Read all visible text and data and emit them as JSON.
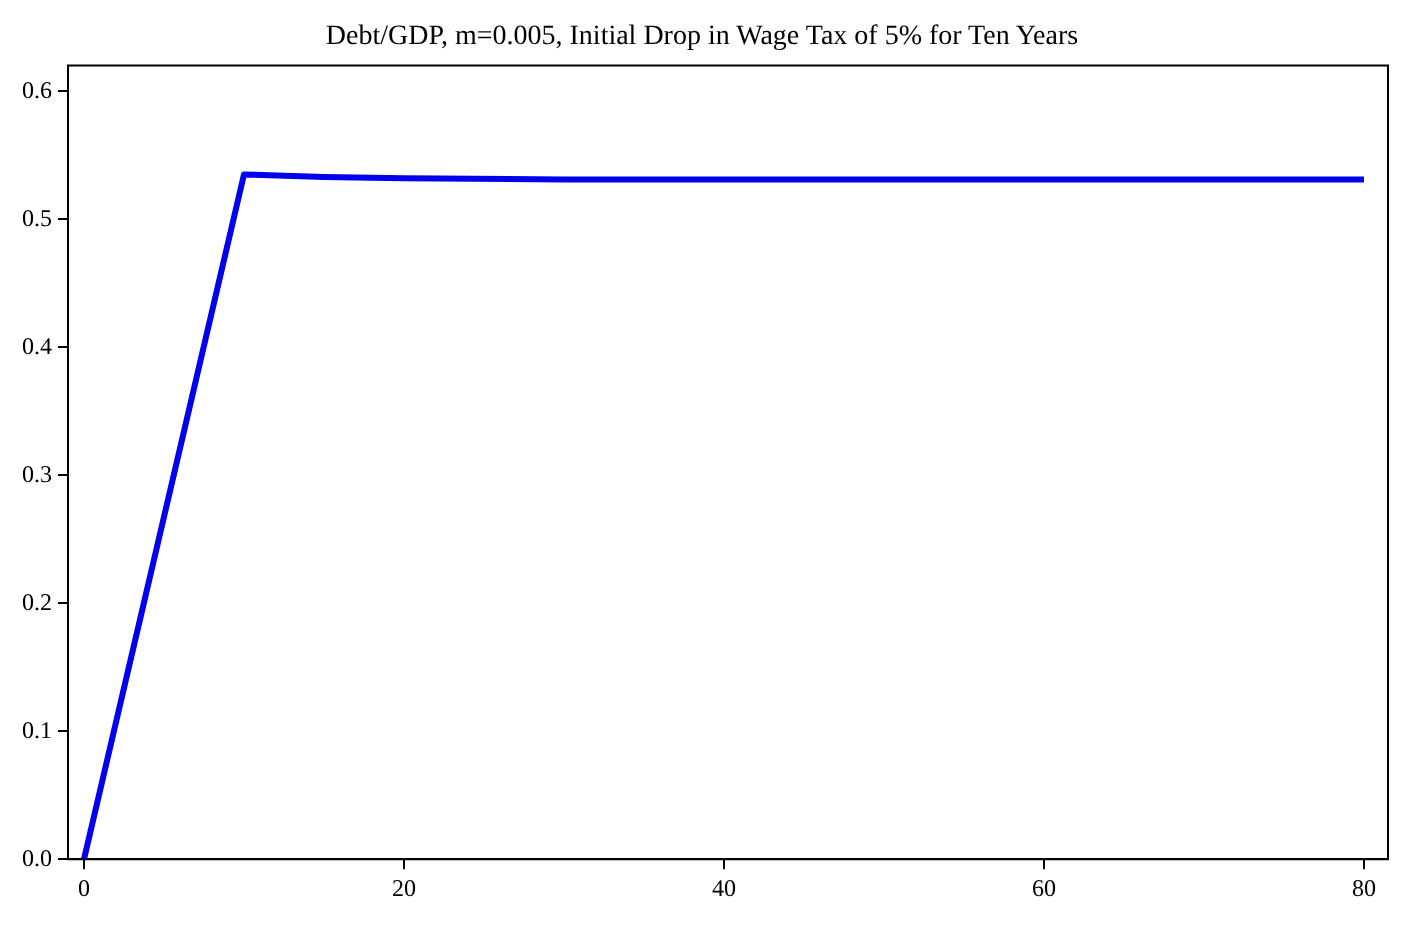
{
  "chart_data": {
    "type": "line",
    "title": "Debt/GDP, m=0.005, Initial Drop in Wage Tax of 5% for Ten Years",
    "x": [
      0,
      10,
      15,
      20,
      30,
      40,
      60,
      80
    ],
    "series": [
      {
        "color": "#0000ee",
        "values": [
          0,
          0.535,
          0.533,
          0.532,
          0.531,
          0.531,
          0.531,
          0.531
        ]
      }
    ],
    "xlim": [
      -1,
      81.5
    ],
    "xticks": [
      0,
      20,
      40,
      60,
      80
    ],
    "ylim": [
      0,
      0.62
    ],
    "yticks": [
      {
        "value": 0,
        "label": "0.0"
      },
      0.1,
      0.2,
      0.3,
      0.4,
      0.5,
      0.6
    ],
    "grid": false,
    "legend": false,
    "marker": "none",
    "line_style": "solid"
  }
}
